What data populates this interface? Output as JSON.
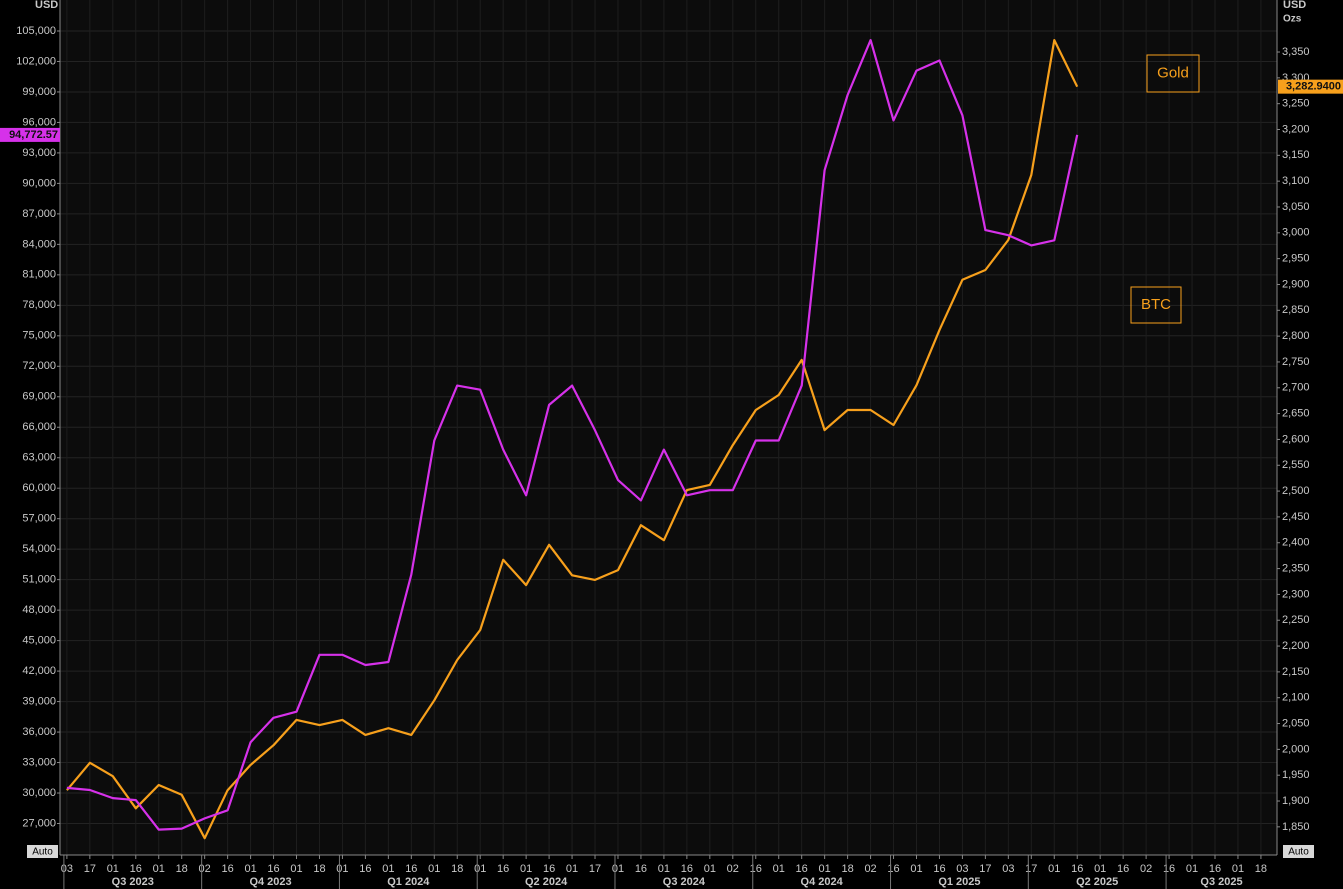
{
  "chart_data": {
    "type": "line",
    "y_label": "USD",
    "y2_label": "USD",
    "y2_unit": "Ozs",
    "controls": [
      "Auto",
      "Auto"
    ],
    "categories": [
      "03",
      "17",
      "01",
      "16",
      "01",
      "18",
      "02",
      "16",
      "01",
      "16",
      "01",
      "18",
      "01",
      "16",
      "01",
      "16",
      "01",
      "18",
      "01",
      "16",
      "01",
      "16",
      "01",
      "17",
      "01",
      "16",
      "01",
      "16",
      "01",
      "02",
      "16",
      "01",
      "16",
      "01",
      "18",
      "02",
      "16",
      "01",
      "16",
      "03",
      "17",
      "03",
      "17",
      "01",
      "16",
      "01",
      "16",
      "02",
      "16",
      "01",
      "16",
      "01",
      "18"
    ],
    "quarters": [
      "Q3 2023",
      "Q4 2023",
      "Q1 2024",
      "Q2 2024",
      "Q3 2024",
      "Q4 2024",
      "Q1 2025",
      "Q2 2025",
      "Q3 2025"
    ],
    "ylim": [
      23900,
      108050
    ],
    "yticks": [
      {
        "value": 27000,
        "label": "27,000"
      },
      {
        "value": 30000,
        "label": "30,000"
      },
      {
        "value": 33000,
        "label": "33,000"
      },
      {
        "value": 36000,
        "label": "36,000"
      },
      {
        "value": 39000,
        "label": "39,000"
      },
      {
        "value": 42000,
        "label": "42,000"
      },
      {
        "value": 45000,
        "label": "45,000"
      },
      {
        "value": 48000,
        "label": "48,000"
      },
      {
        "value": 51000,
        "label": "51,000"
      },
      {
        "value": 54000,
        "label": "54,000"
      },
      {
        "value": 57000,
        "label": "57,000"
      },
      {
        "value": 60000,
        "label": "60,000"
      },
      {
        "value": 63000,
        "label": "63,000"
      },
      {
        "value": 66000,
        "label": "66,000"
      },
      {
        "value": 69000,
        "label": "69,000"
      },
      {
        "value": 72000,
        "label": "72,000"
      },
      {
        "value": 75000,
        "label": "75,000"
      },
      {
        "value": 78000,
        "label": "78,000"
      },
      {
        "value": 81000,
        "label": "81,000"
      },
      {
        "value": 84000,
        "label": "84,000"
      },
      {
        "value": 87000,
        "label": "87,000"
      },
      {
        "value": 90000,
        "label": "90,000"
      },
      {
        "value": 93000,
        "label": "93,000"
      },
      {
        "value": 96000,
        "label": "96,000"
      },
      {
        "value": 99000,
        "label": "99,000"
      },
      {
        "value": 102000,
        "label": "102,000"
      },
      {
        "value": 105000,
        "label": "105,000"
      }
    ],
    "y2lim": [
      1795.5,
      3450.7
    ],
    "y2ticks": [
      {
        "value": 1850,
        "label": "1,850"
      },
      {
        "value": 1900,
        "label": "1,900"
      },
      {
        "value": 1950,
        "label": "1,950"
      },
      {
        "value": 2000,
        "label": "2,000"
      },
      {
        "value": 2050,
        "label": "2,050"
      },
      {
        "value": 2100,
        "label": "2,100"
      },
      {
        "value": 2150,
        "label": "2,150"
      },
      {
        "value": 2200,
        "label": "2,200"
      },
      {
        "value": 2250,
        "label": "2,250"
      },
      {
        "value": 2300,
        "label": "2,300"
      },
      {
        "value": 2350,
        "label": "2,350"
      },
      {
        "value": 2400,
        "label": "2,400"
      },
      {
        "value": 2450,
        "label": "2,450"
      },
      {
        "value": 2500,
        "label": "2,500"
      },
      {
        "value": 2550,
        "label": "2,550"
      },
      {
        "value": 2600,
        "label": "2,600"
      },
      {
        "value": 2650,
        "label": "2,650"
      },
      {
        "value": 2700,
        "label": "2,700"
      },
      {
        "value": 2750,
        "label": "2,750"
      },
      {
        "value": 2800,
        "label": "2,800"
      },
      {
        "value": 2850,
        "label": "2,850"
      },
      {
        "value": 2900,
        "label": "2,900"
      },
      {
        "value": 2950,
        "label": "2,950"
      },
      {
        "value": 3000,
        "label": "3,000"
      },
      {
        "value": 3050,
        "label": "3,050"
      },
      {
        "value": 3100,
        "label": "3,100"
      },
      {
        "value": 3150,
        "label": "3,150"
      },
      {
        "value": 3200,
        "label": "3,200"
      },
      {
        "value": 3250,
        "label": "3,250"
      },
      {
        "value": 3300,
        "label": "3,300"
      },
      {
        "value": 3350,
        "label": "3,350"
      }
    ],
    "grid": true,
    "series": [
      {
        "name": "Gold",
        "color": "#f7a01c",
        "axis": "y2",
        "last_value": {
          "value": 3282.94,
          "label": "3,282.9400"
        },
        "values": [
          1921,
          1974,
          1948,
          1886,
          1931,
          1912,
          1828,
          1921,
          1970,
          2008,
          2057,
          2047,
          2057,
          2028,
          2041,
          2028,
          2095,
          2173,
          2231,
          2367,
          2318,
          2396,
          2337,
          2328,
          2347,
          2434,
          2405,
          2502,
          2512,
          2589,
          2657,
          2686,
          2754,
          2618,
          2657,
          2657,
          2628,
          2705,
          2812,
          2909,
          2928,
          2986,
          3112,
          3373,
          3282.94,
          null,
          null,
          null,
          null,
          null,
          null,
          null,
          null
        ]
      },
      {
        "name": "BTC",
        "color": "#d631ea",
        "axis": "y",
        "last_value": {
          "value": 94772.57,
          "label": "94,772.57"
        },
        "values": [
          30500,
          30300,
          29500,
          29300,
          26400,
          26500,
          27500,
          28300,
          35000,
          37400,
          38000,
          43600,
          43600,
          42600,
          42900,
          51500,
          64700,
          70100,
          69700,
          63800,
          59300,
          68200,
          70100,
          65700,
          60800,
          58800,
          63800,
          59300,
          59800,
          59800,
          64700,
          64700,
          70100,
          91300,
          98700,
          104100,
          96200,
          101100,
          102100,
          96700,
          85400,
          84900,
          83900,
          84400,
          94772.57,
          null,
          null,
          null,
          null,
          null,
          null,
          null,
          null
        ]
      }
    ]
  }
}
